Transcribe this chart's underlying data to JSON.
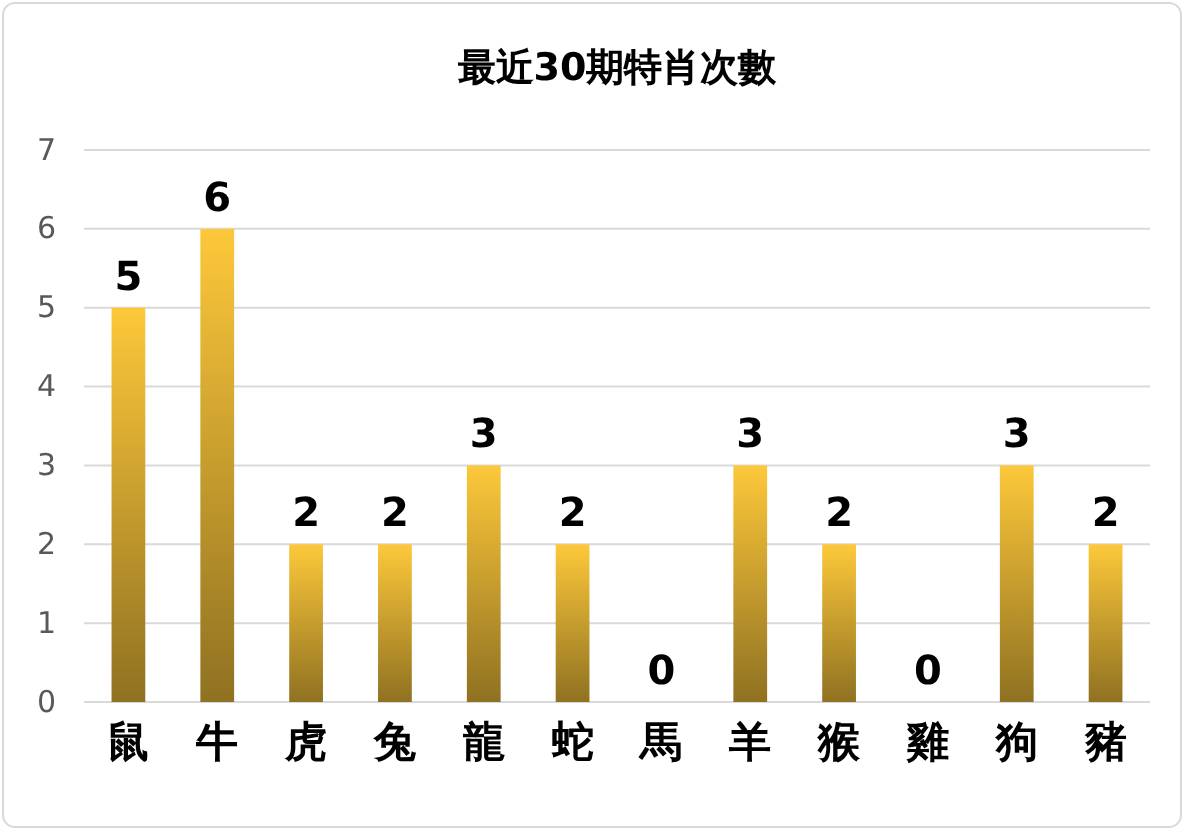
{
  "chart_data": {
    "type": "bar",
    "title": "最近30期特肖次數",
    "categories": [
      "鼠",
      "牛",
      "虎",
      "兔",
      "龍",
      "蛇",
      "馬",
      "羊",
      "猴",
      "雞",
      "狗",
      "豬"
    ],
    "values": [
      5,
      6,
      2,
      2,
      3,
      2,
      0,
      3,
      2,
      0,
      3,
      2
    ],
    "color": "#fdc83a",
    "ylim": [
      0,
      7
    ],
    "yticks": [
      0,
      1,
      2,
      3,
      4,
      5,
      6,
      7
    ],
    "grid": "y",
    "data_labels": true
  }
}
